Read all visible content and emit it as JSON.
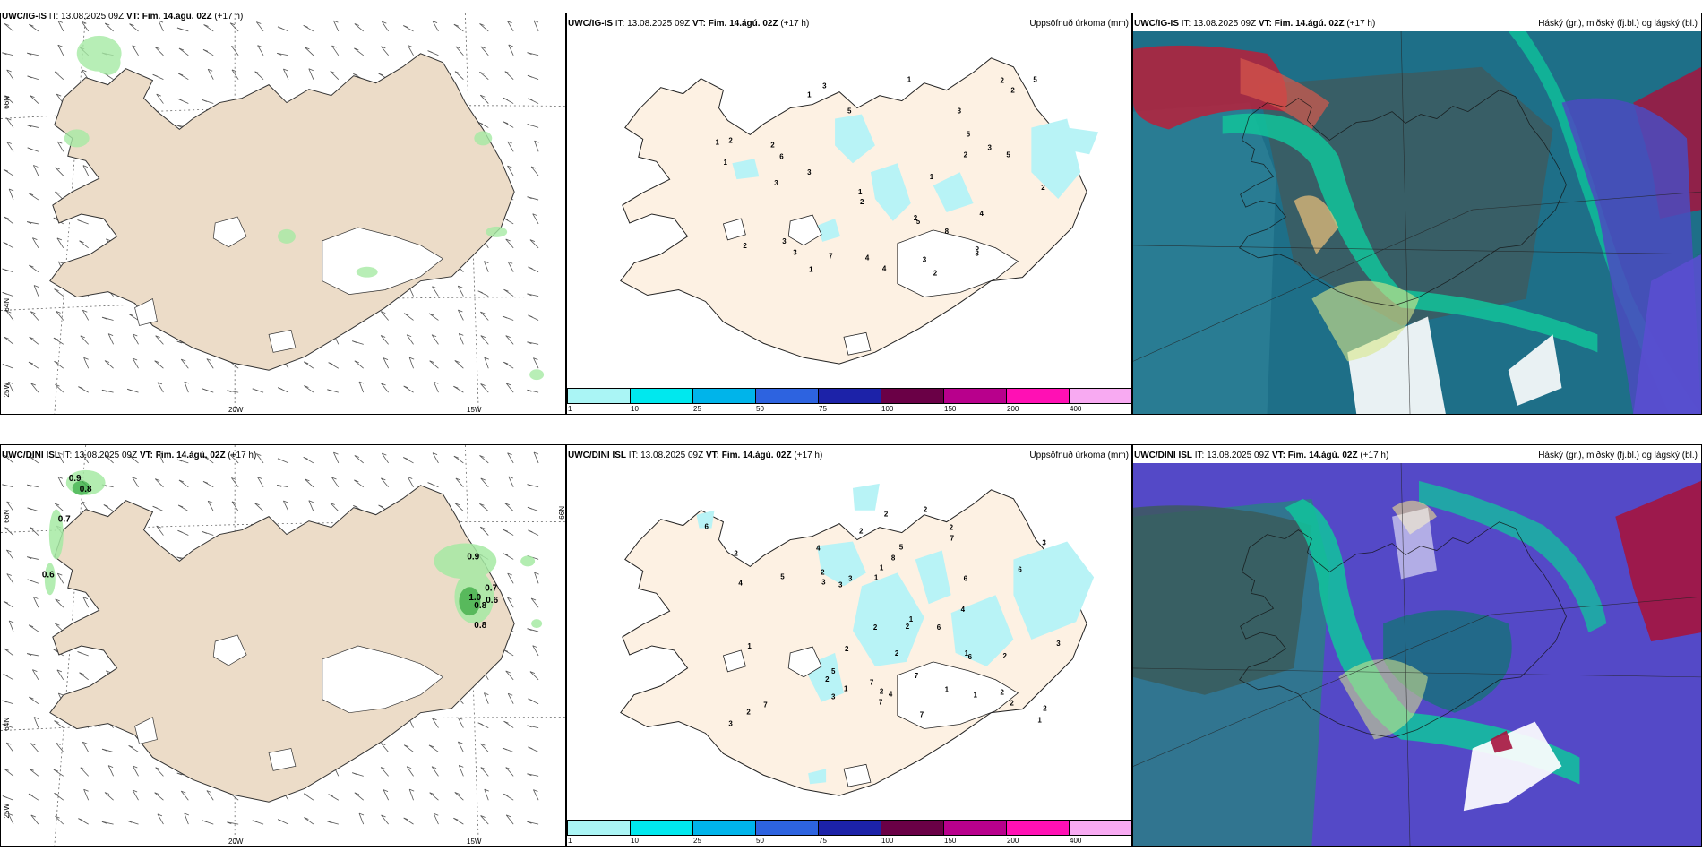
{
  "panels": {
    "wind_top": {
      "model": "UWC/IG-IS",
      "it_prefix": "IT:",
      "it": "13.08.2025 09Z",
      "vt_prefix": "VT:",
      "vt": "Fim. 14.ágú. 02Z",
      "lead": "(+17 h)",
      "rtitle": ""
    },
    "precip_top": {
      "model": "UWC/IG-IS",
      "it_prefix": "IT:",
      "it": "13.08.2025 09Z",
      "vt_prefix": "VT:",
      "vt": "Fim. 14.ágú. 02Z",
      "lead": "(+17 h)",
      "rtitle": "Uppsöfnuð úrkoma (mm)"
    },
    "cloud_top": {
      "model": "UWC/IG-IS",
      "it_prefix": "IT:",
      "it": "13.08.2025 09Z",
      "vt_prefix": "VT:",
      "vt": "Fim. 14.ágú. 02Z",
      "lead": "(+17 h)",
      "rtitle": "Háský (gr.), miðský (fj.bl.) og lágský (bl.)"
    },
    "wind_bot": {
      "model": "UWC/DINI ISL",
      "it_prefix": "IT:",
      "it": "13.08.2025 09Z",
      "vt_prefix": "VT:",
      "vt": "Fim. 14.ágú. 02Z",
      "lead": "(+17 h)",
      "rtitle": ""
    },
    "precip_bot": {
      "model": "UWC/DINI ISL",
      "it_prefix": "IT:",
      "it": "13.08.2025 09Z",
      "vt_prefix": "VT:",
      "vt": "Fim. 14.ágú. 02Z",
      "lead": "(+17 h)",
      "rtitle": "Uppsöfnuð úrkoma (mm)"
    },
    "cloud_bot": {
      "model": "UWC/DINI ISL",
      "it_prefix": "IT:",
      "it": "13.08.2025 09Z",
      "vt_prefix": "VT:",
      "vt": "Fim. 14.ágú. 02Z",
      "lead": "(+17 h)",
      "rtitle": "Háský (gr.), miðský (fj.bl.) og lágský (bl.)"
    }
  },
  "axes": {
    "lat_66": "66N",
    "lat_64": "64N",
    "lon_25": "25W",
    "lon_20": "20W",
    "lon_15": "15W"
  },
  "legend": {
    "labels": [
      "1",
      "10",
      "25",
      "50",
      "75",
      "100",
      "150",
      "200",
      "400"
    ],
    "colors": [
      "#aaf5f5",
      "#00e8ee",
      "#00b4ea",
      "#2d63e0",
      "#1c22a8",
      "#6a0046",
      "#b8008c",
      "#ff10b4",
      "#f8aaf2"
    ]
  },
  "colors": {
    "land": "#ecdcc8",
    "land_light": "#fdf1e3",
    "precip": "#b8f3f6",
    "wind_rain": "#a6eaa4",
    "wind_rain_dark": "#3fb44a"
  },
  "precip_labels_top": [
    "2",
    "1",
    "3",
    "2",
    "3",
    "3",
    "2",
    "3",
    "2",
    "3",
    "2",
    "1",
    "1",
    "2",
    "2",
    "2",
    "1",
    "2",
    "4",
    "5",
    "5",
    "5",
    "1",
    "3",
    "1",
    "5",
    "3",
    "6",
    "4",
    "5",
    "8",
    "5",
    "3",
    "7",
    "3",
    "4",
    "1",
    "2"
  ],
  "precip_labels_bot": [
    "2",
    "2",
    "1",
    "2",
    "2",
    "2",
    "2",
    "2",
    "1",
    "2",
    "1",
    "3",
    "1",
    "2",
    "1",
    "2",
    "1",
    "1",
    "2",
    "3",
    "6",
    "7",
    "7",
    "6",
    "6",
    "7",
    "3",
    "8",
    "6",
    "7",
    "2",
    "2",
    "5",
    "3",
    "2",
    "7",
    "2",
    "6",
    "4",
    "7",
    "5",
    "5",
    "4",
    "3",
    "4",
    "3",
    "1",
    "4",
    "3",
    "2",
    "2",
    "1"
  ],
  "wind_labels_bot": [
    "0.9",
    "0.8",
    "0.7",
    "0.6",
    "0.9",
    "1.0",
    "0.8",
    "0.7",
    "0.6",
    "0.8"
  ]
}
